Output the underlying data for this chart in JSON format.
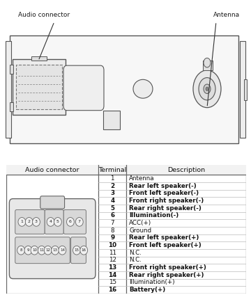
{
  "bg_color": "#ffffff",
  "connector_label": "Audio connector",
  "antenna_label": "Antenna",
  "table_header": [
    "Audio connector",
    "Terminal",
    "Description"
  ],
  "terminals": [
    1,
    2,
    3,
    4,
    5,
    6,
    7,
    8,
    9,
    10,
    11,
    12,
    13,
    14,
    15,
    16
  ],
  "descriptions": [
    "Antenna",
    "Rear left speaker(-)",
    "Front left speaker(-)",
    "Front right speaker(-)",
    "Rear right speaker(-)",
    "Illumination(-)",
    "ACC(+)",
    "Ground",
    "Rear left speaker(+)",
    "Front left speaker(+)",
    "N.C.",
    "N.C.",
    "Front right speaker(+)",
    "Rear right speaker(+)",
    "Illumination(+)",
    "Battery(+)"
  ],
  "bold_rows": [
    2,
    3,
    4,
    5,
    6,
    9,
    10,
    13,
    14,
    16
  ],
  "line_color": "#888888",
  "edge_color": "#555555"
}
